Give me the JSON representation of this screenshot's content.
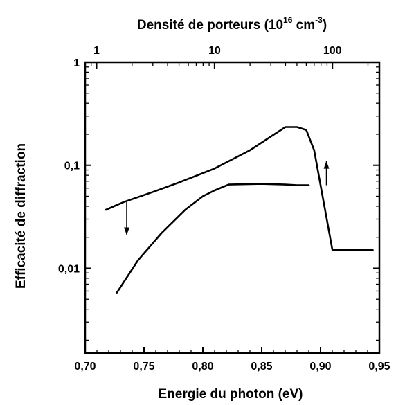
{
  "chart_data": {
    "type": "line",
    "x_axis_bottom": {
      "label": "Energie du photon (eV)",
      "range": [
        0.7,
        0.95
      ],
      "ticks": [
        "0,70",
        "0,75",
        "0,80",
        "0,85",
        "0,90",
        "0,95"
      ],
      "tick_values": [
        0.7,
        0.75,
        0.8,
        0.85,
        0.9,
        0.95
      ]
    },
    "x_axis_top": {
      "label_main": "Densité de porteurs (10",
      "label_exp1": "16",
      "label_mid": " cm",
      "label_exp2": "-3",
      "label_end": ")",
      "scale": "log",
      "range": [
        0.8,
        250
      ],
      "ticks": [
        "1",
        "10",
        "100"
      ],
      "tick_values": [
        1,
        10,
        100
      ]
    },
    "y_axis": {
      "label": "Efficacité de diffraction",
      "scale": "log",
      "range": [
        0.0015,
        1
      ],
      "ticks": [
        "1",
        "0,1",
        "0,01"
      ],
      "tick_values": [
        1,
        0.1,
        0.01
      ]
    },
    "series": [
      {
        "axis": "bottom",
        "x": [
          0.727,
          0.745,
          0.765,
          0.785,
          0.8,
          0.81,
          0.822,
          0.85,
          0.87,
          0.88,
          0.89
        ],
        "y": [
          0.0058,
          0.012,
          0.022,
          0.037,
          0.05,
          0.057,
          0.065,
          0.066,
          0.065,
          0.064,
          0.064
        ]
      },
      {
        "axis": "top",
        "x": [
          1.2,
          1.7,
          3,
          5,
          10,
          20,
          30,
          40,
          50,
          60,
          70,
          100,
          220
        ],
        "y": [
          0.037,
          0.044,
          0.055,
          0.068,
          0.093,
          0.14,
          0.19,
          0.235,
          0.235,
          0.22,
          0.14,
          0.015,
          0.015
        ]
      }
    ],
    "annotations": [
      {
        "type": "arrow",
        "direction": "down",
        "x_top": 1.8,
        "y_start": 0.044,
        "y_end": 0.021
      },
      {
        "type": "arrow",
        "direction": "up",
        "x_bottom": 0.905,
        "y_start": 0.064,
        "y_end": 0.11
      }
    ]
  }
}
